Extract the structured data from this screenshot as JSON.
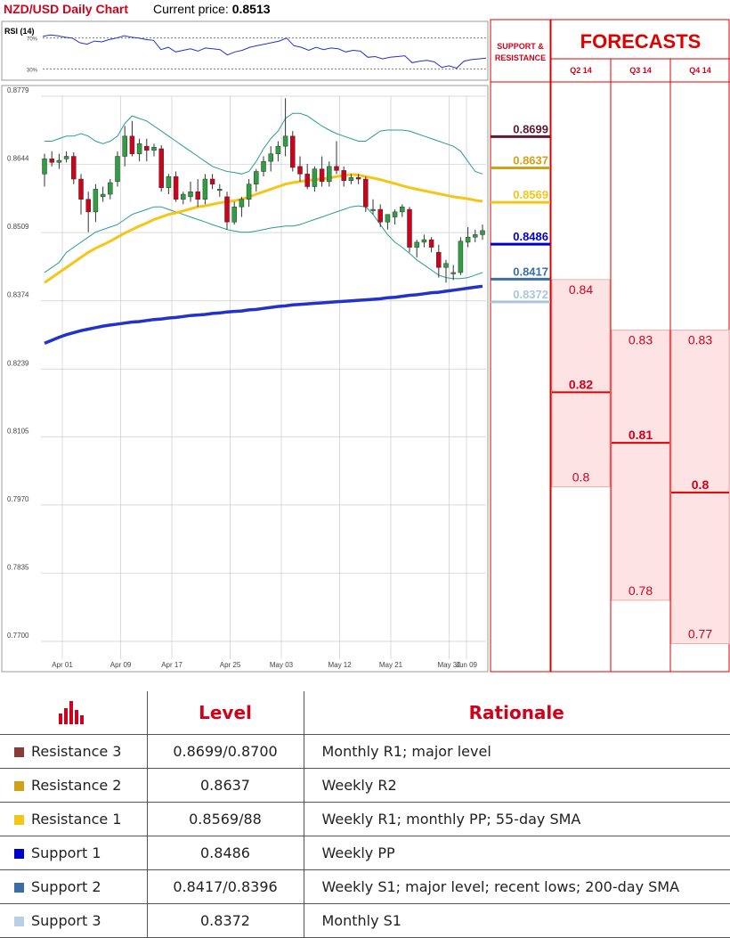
{
  "header": {
    "title": "NZD/USD Daily Chart",
    "price_label": "Current price:",
    "price_value": "0.8513"
  },
  "colors": {
    "bull": "#2ea043",
    "bear": "#d0021b",
    "bollinger": "#2a9d8f",
    "sma55": "#f5c518",
    "sma200": "#2233cc",
    "rsi": "#2233cc",
    "grid": "#cccccc",
    "red": "#e00000",
    "forecast_fill": "#fde3e3"
  },
  "rsi_panel": {
    "label": "RSI (14)",
    "levels": [
      "70%",
      "30%"
    ]
  },
  "chart_data": {
    "type": "candlestick",
    "y_ticks": [
      "0.8779",
      "0.8644",
      "0.8509",
      "0.8374",
      "0.8239",
      "0.8105",
      "0.7970",
      "0.7835",
      "0.7700"
    ],
    "ylim": [
      0.77,
      0.8779
    ],
    "x_ticks": [
      "Apr 01",
      "Apr 09",
      "Apr 17",
      "Apr 25",
      "May 03",
      "May 12",
      "May 21",
      "May 30",
      "Jun 09"
    ],
    "candles": [
      [
        0.8625,
        0.8665,
        0.86,
        0.8655
      ],
      [
        0.8655,
        0.867,
        0.864,
        0.8648
      ],
      [
        0.8648,
        0.8665,
        0.8635,
        0.8652
      ],
      [
        0.8655,
        0.867,
        0.8648,
        0.866
      ],
      [
        0.866,
        0.8668,
        0.8605,
        0.8615
      ],
      [
        0.8615,
        0.8625,
        0.8545,
        0.8575
      ],
      [
        0.8575,
        0.859,
        0.851,
        0.855
      ],
      [
        0.855,
        0.8605,
        0.853,
        0.8595
      ],
      [
        0.858,
        0.86,
        0.857,
        0.8585
      ],
      [
        0.8585,
        0.8615,
        0.8575,
        0.8608
      ],
      [
        0.861,
        0.867,
        0.86,
        0.866
      ],
      [
        0.866,
        0.872,
        0.864,
        0.87
      ],
      [
        0.87,
        0.873,
        0.866,
        0.8665
      ],
      [
        0.8665,
        0.8695,
        0.865,
        0.8685
      ],
      [
        0.868,
        0.8695,
        0.865,
        0.8672
      ],
      [
        0.8672,
        0.8685,
        0.866,
        0.8678
      ],
      [
        0.8675,
        0.8682,
        0.859,
        0.8598
      ],
      [
        0.8598,
        0.8625,
        0.8585,
        0.862
      ],
      [
        0.862,
        0.863,
        0.857,
        0.8575
      ],
      [
        0.8575,
        0.859,
        0.8565,
        0.8585
      ],
      [
        0.858,
        0.861,
        0.857,
        0.859
      ],
      [
        0.859,
        0.8615,
        0.856,
        0.8575
      ],
      [
        0.8575,
        0.8625,
        0.8565,
        0.8615
      ],
      [
        0.8615,
        0.8625,
        0.8595,
        0.8605
      ],
      [
        0.8595,
        0.8605,
        0.858,
        0.8595
      ],
      [
        0.858,
        0.859,
        0.8515,
        0.853
      ],
      [
        0.853,
        0.857,
        0.8525,
        0.856
      ],
      [
        0.856,
        0.858,
        0.854,
        0.8575
      ],
      [
        0.8575,
        0.8615,
        0.856,
        0.8605
      ],
      [
        0.8605,
        0.8635,
        0.859,
        0.863
      ],
      [
        0.863,
        0.866,
        0.862,
        0.865
      ],
      [
        0.865,
        0.868,
        0.863,
        0.8665
      ],
      [
        0.8665,
        0.869,
        0.865,
        0.868
      ],
      [
        0.868,
        0.8775,
        0.866,
        0.87
      ],
      [
        0.87,
        0.871,
        0.863,
        0.8638
      ],
      [
        0.864,
        0.866,
        0.861,
        0.8625
      ],
      [
        0.8625,
        0.8645,
        0.8595,
        0.86
      ],
      [
        0.86,
        0.864,
        0.859,
        0.8635
      ],
      [
        0.8635,
        0.866,
        0.86,
        0.861
      ],
      [
        0.861,
        0.865,
        0.86,
        0.864
      ],
      [
        0.864,
        0.869,
        0.8625,
        0.8632
      ],
      [
        0.8632,
        0.864,
        0.86,
        0.8612
      ],
      [
        0.8612,
        0.8625,
        0.8605,
        0.8618
      ],
      [
        0.8618,
        0.8625,
        0.8605,
        0.8615
      ],
      [
        0.8615,
        0.862,
        0.855,
        0.856
      ],
      [
        0.8555,
        0.8575,
        0.8545,
        0.8555
      ],
      [
        0.8555,
        0.8565,
        0.852,
        0.853
      ],
      [
        0.853,
        0.8545,
        0.8515,
        0.8545
      ],
      [
        0.854,
        0.8555,
        0.8525,
        0.855
      ],
      [
        0.855,
        0.8565,
        0.854,
        0.856
      ],
      [
        0.8555,
        0.856,
        0.847,
        0.848
      ],
      [
        0.848,
        0.8495,
        0.846,
        0.849
      ],
      [
        0.849,
        0.8505,
        0.848,
        0.8495
      ],
      [
        0.8495,
        0.85,
        0.847,
        0.848
      ],
      [
        0.847,
        0.8485,
        0.842,
        0.844
      ],
      [
        0.844,
        0.8455,
        0.841,
        0.8448
      ],
      [
        0.843,
        0.8445,
        0.8415,
        0.843
      ],
      [
        0.843,
        0.85,
        0.8425,
        0.8492
      ],
      [
        0.849,
        0.852,
        0.848,
        0.85
      ],
      [
        0.85,
        0.8515,
        0.849,
        0.8505
      ],
      [
        0.8505,
        0.8525,
        0.8495,
        0.8513
      ]
    ],
    "bollinger_upper": [
      0.869,
      0.869,
      0.8695,
      0.87,
      0.87,
      0.8705,
      0.87,
      0.869,
      0.8685,
      0.869,
      0.87,
      0.8725,
      0.874,
      0.8735,
      0.873,
      0.872,
      0.871,
      0.87,
      0.869,
      0.868,
      0.867,
      0.866,
      0.865,
      0.864,
      0.8635,
      0.863,
      0.8628,
      0.8625,
      0.863,
      0.865,
      0.8675,
      0.8695,
      0.871,
      0.8735,
      0.8745,
      0.8745,
      0.874,
      0.873,
      0.872,
      0.8712,
      0.8705,
      0.87,
      0.8695,
      0.869,
      0.869,
      0.87,
      0.871,
      0.8712,
      0.8712,
      0.8712,
      0.871,
      0.8705,
      0.87,
      0.8695,
      0.869,
      0.8685,
      0.868,
      0.867,
      0.865,
      0.863,
      0.8625
    ],
    "bollinger_lower": [
      0.843,
      0.844,
      0.845,
      0.847,
      0.848,
      0.849,
      0.85,
      0.851,
      0.8515,
      0.852,
      0.8525,
      0.8535,
      0.8545,
      0.855,
      0.8555,
      0.856,
      0.856,
      0.8555,
      0.855,
      0.8545,
      0.854,
      0.8535,
      0.853,
      0.8525,
      0.852,
      0.8515,
      0.8512,
      0.851,
      0.851,
      0.8512,
      0.8515,
      0.8518,
      0.852,
      0.8522,
      0.8522,
      0.8525,
      0.853,
      0.8535,
      0.854,
      0.8545,
      0.855,
      0.8555,
      0.856,
      0.8562,
      0.856,
      0.8545,
      0.8525,
      0.8505,
      0.849,
      0.848,
      0.8468,
      0.8455,
      0.8445,
      0.8435,
      0.8425,
      0.842,
      0.8418,
      0.8418,
      0.842,
      0.8425,
      0.843
    ],
    "sma55": [
      0.841,
      0.842,
      0.843,
      0.844,
      0.845,
      0.846,
      0.847,
      0.8478,
      0.8485,
      0.8492,
      0.85,
      0.8508,
      0.8515,
      0.8522,
      0.8528,
      0.8535,
      0.854,
      0.8545,
      0.8548,
      0.8552,
      0.8556,
      0.856,
      0.8562,
      0.8565,
      0.8568,
      0.857,
      0.8572,
      0.8575,
      0.858,
      0.8585,
      0.859,
      0.8595,
      0.86,
      0.8605,
      0.8608,
      0.861,
      0.8612,
      0.8614,
      0.8615,
      0.8617,
      0.862,
      0.8622,
      0.8624,
      0.8623,
      0.862,
      0.8617,
      0.8614,
      0.861,
      0.8606,
      0.8602,
      0.8598,
      0.8595,
      0.8592,
      0.8589,
      0.8586,
      0.8583,
      0.858,
      0.8578,
      0.8576,
      0.8573,
      0.8571
    ],
    "sma200": [
      0.829,
      0.8296,
      0.8302,
      0.8307,
      0.8311,
      0.8315,
      0.8318,
      0.8321,
      0.8324,
      0.8326,
      0.8328,
      0.833,
      0.8332,
      0.8333,
      0.8335,
      0.8337,
      0.8338,
      0.834,
      0.8341,
      0.8343,
      0.8345,
      0.8346,
      0.8347,
      0.8349,
      0.835,
      0.8352,
      0.8353,
      0.8354,
      0.8356,
      0.8357,
      0.8359,
      0.8361,
      0.8363,
      0.8364,
      0.8366,
      0.8367,
      0.8368,
      0.8369,
      0.837,
      0.8371,
      0.8372,
      0.8373,
      0.8374,
      0.8375,
      0.8376,
      0.8377,
      0.8378,
      0.838,
      0.8381,
      0.8383,
      0.8385,
      0.8386,
      0.8388,
      0.839,
      0.8391,
      0.8393,
      0.8395,
      0.8397,
      0.8399,
      0.8401,
      0.8403
    ],
    "rsi": [
      72,
      74,
      73,
      71,
      70,
      64,
      62,
      66,
      65,
      68,
      70,
      73,
      71,
      70,
      68,
      67,
      55,
      58,
      52,
      54,
      56,
      53,
      57,
      56,
      55,
      48,
      52,
      54,
      58,
      60,
      62,
      64,
      66,
      70,
      60,
      58,
      54,
      58,
      55,
      57,
      56,
      52,
      54,
      53,
      45,
      46,
      43,
      45,
      46,
      47,
      38,
      40,
      41,
      39,
      32,
      34,
      31,
      40,
      42,
      43,
      44
    ]
  },
  "support_resistance": {
    "header": "SUPPORT & RESISTANCE",
    "levels": [
      {
        "label": "0.8699",
        "value": 0.8699,
        "color": "#5c1a33"
      },
      {
        "label": "0.8637",
        "value": 0.8637,
        "color": "#d4a017"
      },
      {
        "label": "0.8569",
        "value": 0.8569,
        "color": "#f5c518"
      },
      {
        "label": "0.8486",
        "value": 0.8486,
        "color": "#0000cc"
      },
      {
        "label": "0.8417",
        "value": 0.8417,
        "color": "#3a6ea5"
      },
      {
        "label": "0.8372",
        "value": 0.8372,
        "color": "#a9c6de"
      }
    ]
  },
  "forecasts": {
    "title": "FORECASTS",
    "quarters": [
      {
        "label": "Q2 14",
        "high": "0.84",
        "mid": "0.82",
        "low": "0.8"
      },
      {
        "label": "Q3 14",
        "high": "0.83",
        "mid": "0.81",
        "low": "0.78"
      },
      {
        "label": "Q4 14",
        "high": "0.83",
        "mid": "0.8",
        "low": "0.77"
      }
    ]
  },
  "table": {
    "headers": [
      "",
      "Level",
      "Rationale"
    ],
    "rows": [
      {
        "name": "Resistance 3",
        "level": "0.8699/0.8700",
        "rationale": "Monthly R1; major level",
        "color": "#8b3a3a"
      },
      {
        "name": "Resistance 2",
        "level": "0.8637",
        "rationale": "Weekly R2",
        "color": "#d4a017"
      },
      {
        "name": "Resistance 1",
        "level": "0.8569/88",
        "rationale": "Weekly R1; monthly PP; 55-day SMA",
        "color": "#f5c518"
      },
      {
        "name": "Support 1",
        "level": "0.8486",
        "rationale": "Weekly PP",
        "color": "#0000cc"
      },
      {
        "name": "Support 2",
        "level": "0.8417/0.8396",
        "rationale": "Weekly S1; major level; recent lows; 200-day SMA",
        "color": "#3a6ea5"
      },
      {
        "name": "Support 3",
        "level": "0.8372",
        "rationale": "Monthly S1",
        "color": "#b9cfe6"
      }
    ]
  }
}
